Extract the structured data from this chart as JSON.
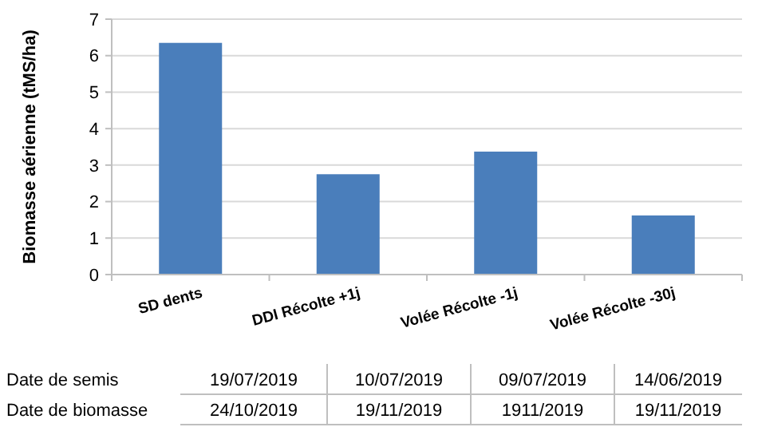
{
  "chart_data": {
    "type": "bar",
    "ylabel": "Biomasse aérienne (tMS/ha)",
    "categories": [
      "SD dents",
      "DDI Récolte +1j",
      "Volée Récolte -1j",
      "Volée Récolte -30j"
    ],
    "values": [
      6.35,
      2.75,
      3.37,
      1.62
    ],
    "color": "#4a7ebb",
    "ylim": [
      0,
      7
    ],
    "yticks": [
      0,
      1,
      2,
      3,
      4,
      5,
      6,
      7
    ],
    "grid": "y",
    "annotations": [
      "Date de semis",
      "19/07/2019",
      "10/07/2019",
      "09/07/2019",
      "14/06/2019",
      "Date de biomasse",
      "24/10/2019",
      "19/11/2019",
      "1911/2019",
      "19/11/2019"
    ]
  }
}
